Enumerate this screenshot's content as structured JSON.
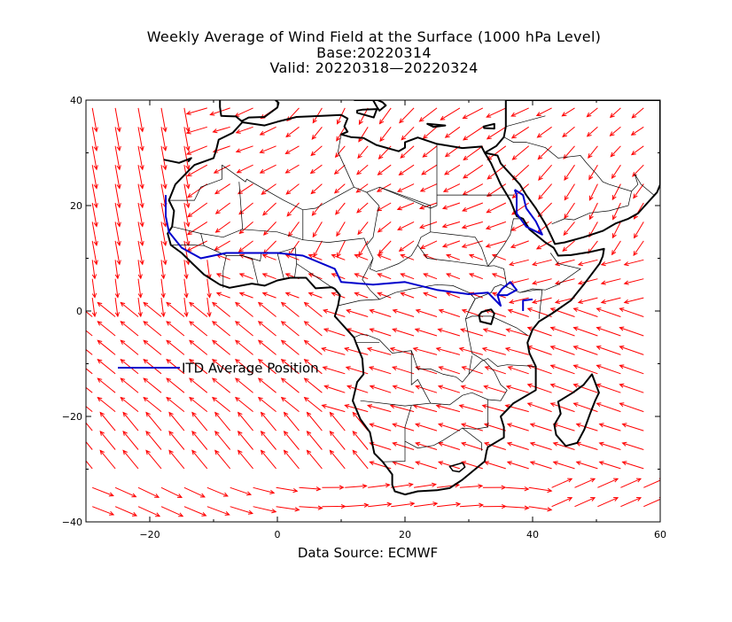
{
  "title": {
    "line1": "Weekly Average of Wind Field at the Surface (1000 hPa Level)",
    "line2": "Base:20220314",
    "line3": "Valid: 20220318—20220324"
  },
  "source": "Data Source: ECMWF",
  "legend": {
    "label": "ITD Average Position",
    "color": "#0000cc"
  },
  "axes": {
    "lon_range": [
      -30,
      60
    ],
    "lat_range": [
      -40,
      40
    ],
    "x_ticks": [
      {
        "v": -20,
        "label": "−20"
      },
      {
        "v": 0,
        "label": "0"
      },
      {
        "v": 20,
        "label": "20"
      },
      {
        "v": 40,
        "label": "40"
      },
      {
        "v": 60,
        "label": "60"
      }
    ],
    "y_ticks": [
      {
        "v": 40,
        "label": "40"
      },
      {
        "v": 20,
        "label": "20"
      },
      {
        "v": 0,
        "label": "0"
      },
      {
        "v": -20,
        "label": "−20"
      },
      {
        "v": -40,
        "label": "−40"
      }
    ]
  },
  "colors": {
    "wind": "#ff0000",
    "itd": "#0000cc",
    "coast": "#000000"
  },
  "itd_line": [
    [
      -17.5,
      22
    ],
    [
      -17.5,
      18
    ],
    [
      -17,
      15
    ],
    [
      -15,
      12
    ],
    [
      -12,
      10
    ],
    [
      -8,
      11
    ],
    [
      0,
      11
    ],
    [
      4,
      10.5
    ],
    [
      9,
      8
    ],
    [
      10,
      5.5
    ],
    [
      15,
      5
    ],
    [
      20,
      5.5
    ],
    [
      25,
      4
    ],
    [
      30,
      3.2
    ],
    [
      33,
      3.5
    ],
    [
      35,
      1
    ],
    [
      34.5,
      3
    ],
    [
      35.2,
      4.2
    ],
    [
      36.5,
      5.5
    ],
    [
      37.5,
      4
    ],
    [
      36,
      3
    ],
    [
      34.5,
      3
    ]
  ],
  "itd_line_2": [
    [
      37.2,
      23
    ],
    [
      38.5,
      22
    ],
    [
      39,
      19.5
    ],
    [
      40.5,
      17
    ],
    [
      41.5,
      14.5
    ],
    [
      39,
      16
    ],
    [
      37.5,
      18.5
    ],
    [
      37.5,
      22
    ],
    [
      37.2,
      23
    ]
  ],
  "itd_line_3": [
    [
      38.5,
      0
    ],
    [
      38.5,
      2
    ],
    [
      40,
      2.2
    ]
  ]
}
